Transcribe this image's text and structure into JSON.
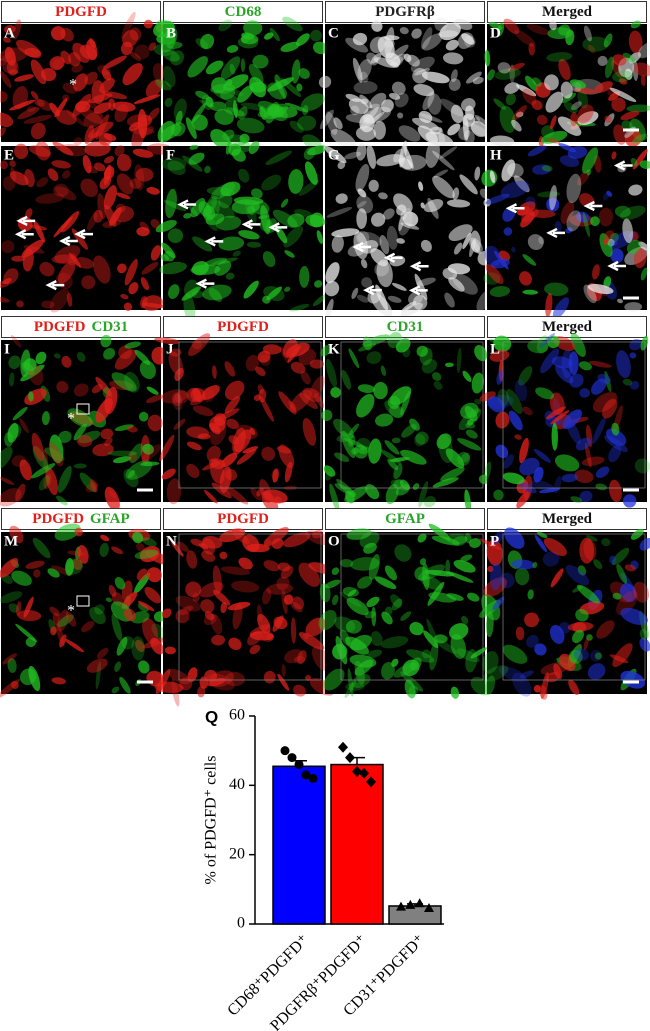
{
  "panels": {
    "rows": [
      {
        "headers": [
          [
            {
              "text": "PDGFD",
              "color": "#e0201b"
            }
          ],
          [
            {
              "text": "CD68",
              "color": "#2aa52a"
            }
          ],
          [
            {
              "text": "PDGFRβ",
              "color": "#222222"
            }
          ],
          [
            {
              "text": "Merged",
              "color": "#111111"
            }
          ]
        ],
        "letters": [
          [
            "A",
            "B",
            "C",
            "D"
          ],
          [
            "E",
            "F",
            "G",
            "H"
          ]
        ],
        "asterisk": "*"
      },
      {
        "headers": [
          [
            {
              "text": "PDGFD",
              "color": "#e0201b"
            },
            {
              "text": "CD31",
              "color": "#2aa52a"
            }
          ],
          [
            {
              "text": "PDGFD",
              "color": "#e0201b"
            }
          ],
          [
            {
              "text": "CD31",
              "color": "#2aa52a"
            }
          ],
          [
            {
              "text": "Merged",
              "color": "#111111"
            }
          ]
        ],
        "letters": [
          [
            "I",
            "J",
            "K",
            "L"
          ]
        ],
        "asterisk": "*"
      },
      {
        "headers": [
          [
            {
              "text": "PDGFD",
              "color": "#e0201b"
            },
            {
              "text": "GFAP",
              "color": "#2aa52a"
            }
          ],
          [
            {
              "text": "PDGFD",
              "color": "#e0201b"
            }
          ],
          [
            {
              "text": "GFAP",
              "color": "#2aa52a"
            }
          ],
          [
            {
              "text": "Merged",
              "color": "#111111"
            }
          ]
        ],
        "letters": [
          [
            "M",
            "N",
            "O",
            "P"
          ]
        ],
        "asterisk": "*"
      }
    ]
  },
  "chart_data": {
    "type": "bar",
    "title": "Q",
    "y_label": "% of PDGFD⁺ cells",
    "categories": [
      "CD68⁺PDGFD⁺",
      "PDGFRβ⁺PDGFD⁺",
      "CD31⁺PDGFD⁺"
    ],
    "values": [
      45.5,
      46,
      5.2
    ],
    "errors": [
      1.6,
      2.0,
      0.6
    ],
    "colors": [
      "#0000ff",
      "#ff0000",
      "#808080"
    ],
    "markers": [
      "circle",
      "diamond",
      "triangle"
    ],
    "points": [
      [
        50,
        48,
        46,
        43,
        42
      ],
      [
        51,
        48,
        44,
        43.5,
        41
      ],
      [
        5,
        5.5,
        6,
        4.6
      ]
    ],
    "ylim": [
      0,
      60
    ],
    "yticks": [
      0,
      20,
      40,
      60
    ]
  }
}
